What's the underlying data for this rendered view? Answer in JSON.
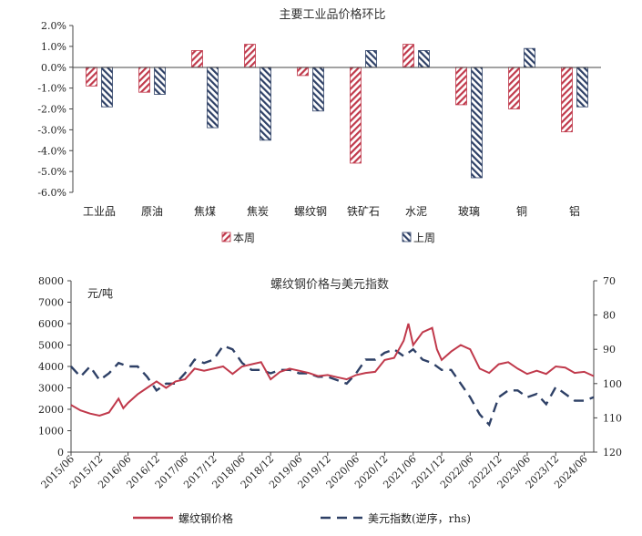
{
  "colors": {
    "this_week": "#c0394b",
    "last_week": "#2e4066",
    "axis": "#444444"
  },
  "chart_data": [
    {
      "type": "bar",
      "title": "主要工业品价格环比",
      "categories": [
        "工业品",
        "原油",
        "焦煤",
        "焦炭",
        "螺纹钢",
        "铁矿石",
        "水泥",
        "玻璃",
        "铜",
        "铝"
      ],
      "series": [
        {
          "name": "本周",
          "values": [
            -0.9,
            -1.2,
            0.8,
            1.1,
            -0.4,
            -4.6,
            1.1,
            -1.8,
            -2.0,
            -3.1
          ]
        },
        {
          "name": "上周",
          "values": [
            -1.9,
            -1.3,
            -2.9,
            -3.5,
            -2.1,
            0.8,
            0.8,
            -5.3,
            0.9,
            -1.9
          ]
        }
      ],
      "ylim": [
        -6.0,
        2.0
      ],
      "yticks": [
        "2.0%",
        "1.0%",
        "0.0%",
        "-1.0%",
        "-2.0%",
        "-3.0%",
        "-4.0%",
        "-5.0%",
        "-6.0%"
      ],
      "legend": "bottom",
      "grid": false
    },
    {
      "type": "line",
      "title": "螺纹钢价格与美元指数",
      "ylabel": "元/吨",
      "ylim": [
        0,
        8000
      ],
      "y2lim": [
        70,
        120
      ],
      "y2_inverted": true,
      "yticks": [
        "8000",
        "7000",
        "6000",
        "5000",
        "4000",
        "3000",
        "2000",
        "1000",
        "0"
      ],
      "y2ticks": [
        "70",
        "80",
        "90",
        "100",
        "110",
        "120"
      ],
      "xticks": [
        "2015/06",
        "2015/12",
        "2016/06",
        "2016/12",
        "2017/06",
        "2017/12",
        "2018/06",
        "2018/12",
        "2019/06",
        "2019/12",
        "2020/06",
        "2020/12",
        "2021/06",
        "2021/12",
        "2022/06",
        "2022/12",
        "2023/06",
        "2023/12",
        "2024/06"
      ],
      "series": [
        {
          "name": "螺纹钢价格",
          "axis": "left",
          "x": [
            "2015/06",
            "2015/08",
            "2015/10",
            "2015/12",
            "2016/02",
            "2016/04",
            "2016/05",
            "2016/06",
            "2016/08",
            "2016/10",
            "2016/12",
            "2017/02",
            "2017/04",
            "2017/06",
            "2017/08",
            "2017/10",
            "2017/12",
            "2018/02",
            "2018/04",
            "2018/06",
            "2018/08",
            "2018/10",
            "2018/12",
            "2019/02",
            "2019/04",
            "2019/06",
            "2019/08",
            "2019/10",
            "2019/12",
            "2020/02",
            "2020/04",
            "2020/06",
            "2020/08",
            "2020/10",
            "2020/12",
            "2021/02",
            "2021/04",
            "2021/05",
            "2021/06",
            "2021/08",
            "2021/10",
            "2021/11",
            "2021/12",
            "2022/02",
            "2022/04",
            "2022/06",
            "2022/08",
            "2022/10",
            "2022/12",
            "2023/02",
            "2023/04",
            "2023/06",
            "2023/08",
            "2023/10",
            "2023/12",
            "2024/02",
            "2024/04",
            "2024/06",
            "2024/08"
          ],
          "values": [
            2200,
            1950,
            1800,
            1700,
            1850,
            2500,
            2050,
            2300,
            2700,
            3000,
            3300,
            3000,
            3300,
            3400,
            3900,
            3800,
            3900,
            4000,
            3650,
            4000,
            4100,
            4200,
            3400,
            3750,
            3900,
            3800,
            3700,
            3550,
            3600,
            3500,
            3400,
            3600,
            3700,
            3750,
            4300,
            4400,
            5200,
            6000,
            5000,
            5600,
            5800,
            4800,
            4300,
            4700,
            5000,
            4800,
            3900,
            3700,
            4100,
            4200,
            3900,
            3650,
            3800,
            3650,
            4000,
            3950,
            3700,
            3750,
            3550
          ]
        },
        {
          "name": "美元指数(逆序，rhs)",
          "axis": "right",
          "x": [
            "2015/06",
            "2015/08",
            "2015/10",
            "2015/12",
            "2016/02",
            "2016/04",
            "2016/06",
            "2016/08",
            "2016/10",
            "2016/12",
            "2017/02",
            "2017/04",
            "2017/06",
            "2017/08",
            "2017/10",
            "2017/12",
            "2018/02",
            "2018/04",
            "2018/06",
            "2018/08",
            "2018/10",
            "2018/12",
            "2019/02",
            "2019/04",
            "2019/06",
            "2019/08",
            "2019/10",
            "2019/12",
            "2020/02",
            "2020/04",
            "2020/06",
            "2020/08",
            "2020/10",
            "2020/12",
            "2021/02",
            "2021/04",
            "2021/06",
            "2021/08",
            "2021/10",
            "2021/12",
            "2022/02",
            "2022/04",
            "2022/06",
            "2022/08",
            "2022/10",
            "2022/12",
            "2023/02",
            "2023/04",
            "2023/06",
            "2023/08",
            "2023/10",
            "2023/12",
            "2024/02",
            "2024/04",
            "2024/06",
            "2024/08"
          ],
          "values": [
            95,
            98,
            95,
            99,
            97,
            94,
            95,
            95,
            98,
            102,
            100,
            100,
            97,
            93,
            94,
            93,
            89,
            90,
            94,
            96,
            96,
            97,
            96,
            96,
            97,
            97,
            98,
            98,
            99,
            100,
            97,
            93,
            93,
            91,
            90,
            92,
            90,
            93,
            94,
            96,
            96,
            100,
            104,
            109,
            112,
            104,
            102,
            102,
            104,
            103,
            106,
            101,
            103,
            105,
            105,
            104
          ]
        }
      ],
      "legend": "bottom",
      "grid": false
    }
  ]
}
